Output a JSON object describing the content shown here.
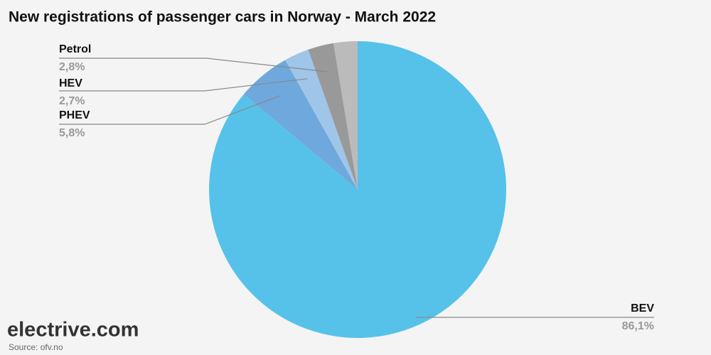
{
  "chart_data": {
    "type": "pie",
    "title": "New registrations of passenger cars in Norway - March 2022",
    "categories": [
      "BEV",
      "PHEV",
      "HEV",
      "Petrol",
      null
    ],
    "values": [
      86.1,
      5.8,
      2.7,
      2.8,
      2.6
    ],
    "value_labels": [
      "86,1%",
      "5,8%",
      "2,7%",
      "2,8%",
      null
    ],
    "colors": [
      "#56c2ea",
      "#6fa8dc",
      "#9fc5e8",
      "#999999",
      "#bbbbbb"
    ],
    "logo": "electrive.com",
    "source": "Source: ofv.no"
  }
}
